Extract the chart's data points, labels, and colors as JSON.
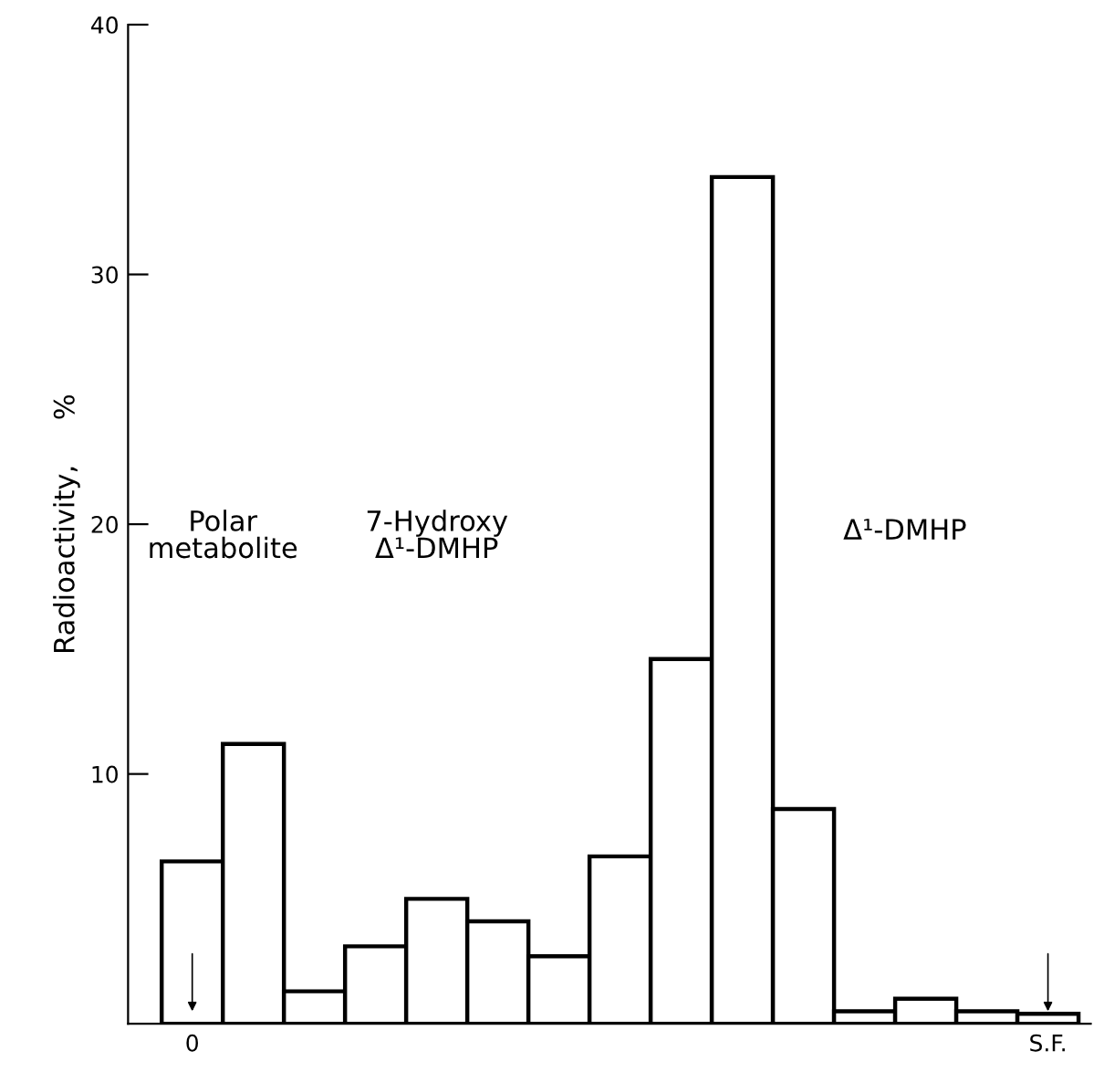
{
  "chart_data": {
    "type": "bar",
    "ylabel": "Radioactivity,     %",
    "categories": [
      "0",
      null,
      null,
      null,
      null,
      null,
      null,
      null,
      null,
      null,
      null,
      null,
      null,
      null,
      "S.F."
    ],
    "values": [
      6.5,
      11.2,
      1.3,
      3.1,
      5.0,
      4.1,
      2.7,
      6.7,
      14.6,
      33.9,
      8.6,
      0.5,
      1.0,
      0.5,
      0.4
    ],
    "color": "#ffffff",
    "ylim": [
      0,
      40
    ],
    "yticks": [
      10,
      20,
      30,
      40
    ],
    "grid": false,
    "annotations": [
      "Polar\nmetabolite",
      "7-Hydroxy\nΔ¹-DMHP",
      "Δ¹-DMHP"
    ]
  }
}
